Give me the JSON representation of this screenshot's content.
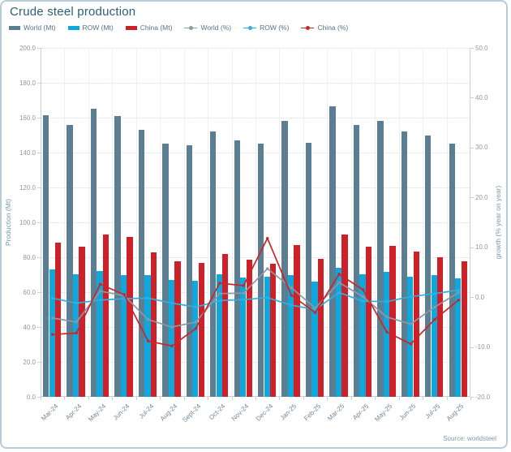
{
  "title": "Crude steel production",
  "source": "Source: worldsteel",
  "colors": {
    "world_bar": "#5c7e93",
    "row_bar": "#0fa7dc",
    "china_bar": "#ce2029",
    "world_line": "#8b99a4",
    "row_line": "#31aede",
    "china_line": "#c62828",
    "title_text": "#2b6077",
    "gridline": "#e9edf1",
    "border": "#b9ccd9"
  },
  "legend": [
    {
      "label": "World (Mt)",
      "type": "bar",
      "color": "#5c7e93"
    },
    {
      "label": "ROW (Mt)",
      "type": "bar",
      "color": "#0fa7dc"
    },
    {
      "label": "China (Mt)",
      "type": "bar",
      "color": "#ce2029"
    },
    {
      "label": "World (%)",
      "type": "line",
      "color": "#8b99a4"
    },
    {
      "label": "ROW (%)",
      "type": "line",
      "color": "#31aede"
    },
    {
      "label": "China (%)",
      "type": "line",
      "color": "#c62828"
    }
  ],
  "chart_data": {
    "type": "bar",
    "subtype": "grouped bars with overlaid growth lines",
    "title": "Crude steel production",
    "categories": [
      "Mar-24",
      "Apr-24",
      "May-24",
      "Jun-24",
      "Jul-24",
      "Aug-24",
      "Sept-24",
      "Oct-24",
      "Nov-24",
      "Dec-24",
      "Jan-25",
      "Feb-25",
      "Mar-25",
      "Apr-25",
      "May-25",
      "Jun-25",
      "Jul-25",
      "Aug-25"
    ],
    "bar_series": [
      {
        "name": "World (Mt)",
        "axis": "left",
        "color": "#5c7e93",
        "values": [
          161.2,
          156.0,
          165.3,
          161.0,
          152.8,
          145.0,
          144.2,
          152.2,
          147.0,
          145.0,
          158.0,
          145.7,
          166.5,
          156.0,
          158.3,
          152.0,
          149.8,
          145.3
        ]
      },
      {
        "name": "ROW (Mt)",
        "axis": "left",
        "color": "#0fa7dc",
        "values": [
          72.9,
          70.1,
          72.0,
          69.6,
          69.9,
          66.8,
          66.5,
          70.2,
          68.6,
          69.0,
          69.8,
          65.9,
          73.8,
          70.1,
          71.5,
          69.0,
          69.7,
          67.9
        ]
      },
      {
        "name": "China (Mt)",
        "axis": "left",
        "color": "#ce2029",
        "values": [
          88.5,
          86.1,
          93.2,
          91.5,
          83.0,
          77.8,
          76.7,
          81.9,
          78.4,
          76.2,
          87.0,
          79.3,
          93.0,
          86.0,
          86.6,
          83.1,
          80.0,
          77.5
        ]
      }
    ],
    "line_series": [
      {
        "name": "World (%)",
        "axis": "right",
        "color": "#8b99a4",
        "values": [
          -4.2,
          -5.0,
          1.2,
          0.3,
          -4.5,
          -6.0,
          -5.0,
          0.7,
          0.8,
          5.7,
          1.9,
          -2.2,
          2.9,
          0.1,
          -4.0,
          -5.4,
          -2.0,
          0.9
        ]
      },
      {
        "name": "ROW (%)",
        "axis": "right",
        "color": "#31aede",
        "values": [
          -0.2,
          -1.2,
          -0.6,
          -0.3,
          -0.2,
          -1.2,
          -2.0,
          -0.7,
          -0.5,
          -0.1,
          -1.6,
          -2.5,
          0.9,
          -0.8,
          -0.9,
          0.1,
          0.7,
          1.4
        ]
      },
      {
        "name": "China (%)",
        "axis": "right",
        "color": "#c62828",
        "values": [
          -7.5,
          -7.2,
          2.6,
          0.5,
          -8.8,
          -9.8,
          -6.3,
          2.8,
          2.3,
          11.8,
          0.4,
          -3.1,
          4.6,
          1.5,
          -7.0,
          -9.4,
          -4.5,
          -0.6
        ]
      }
    ],
    "left_axis": {
      "label": "Production (Mt)",
      "min": 0,
      "max": 200,
      "step": 20,
      "tick_format": "one_decimal"
    },
    "right_axis": {
      "label": "growth (% year on year)",
      "min": -20,
      "max": 50,
      "step": 10,
      "tick_format": "one_decimal"
    },
    "grid": true,
    "legend_position": "top"
  }
}
